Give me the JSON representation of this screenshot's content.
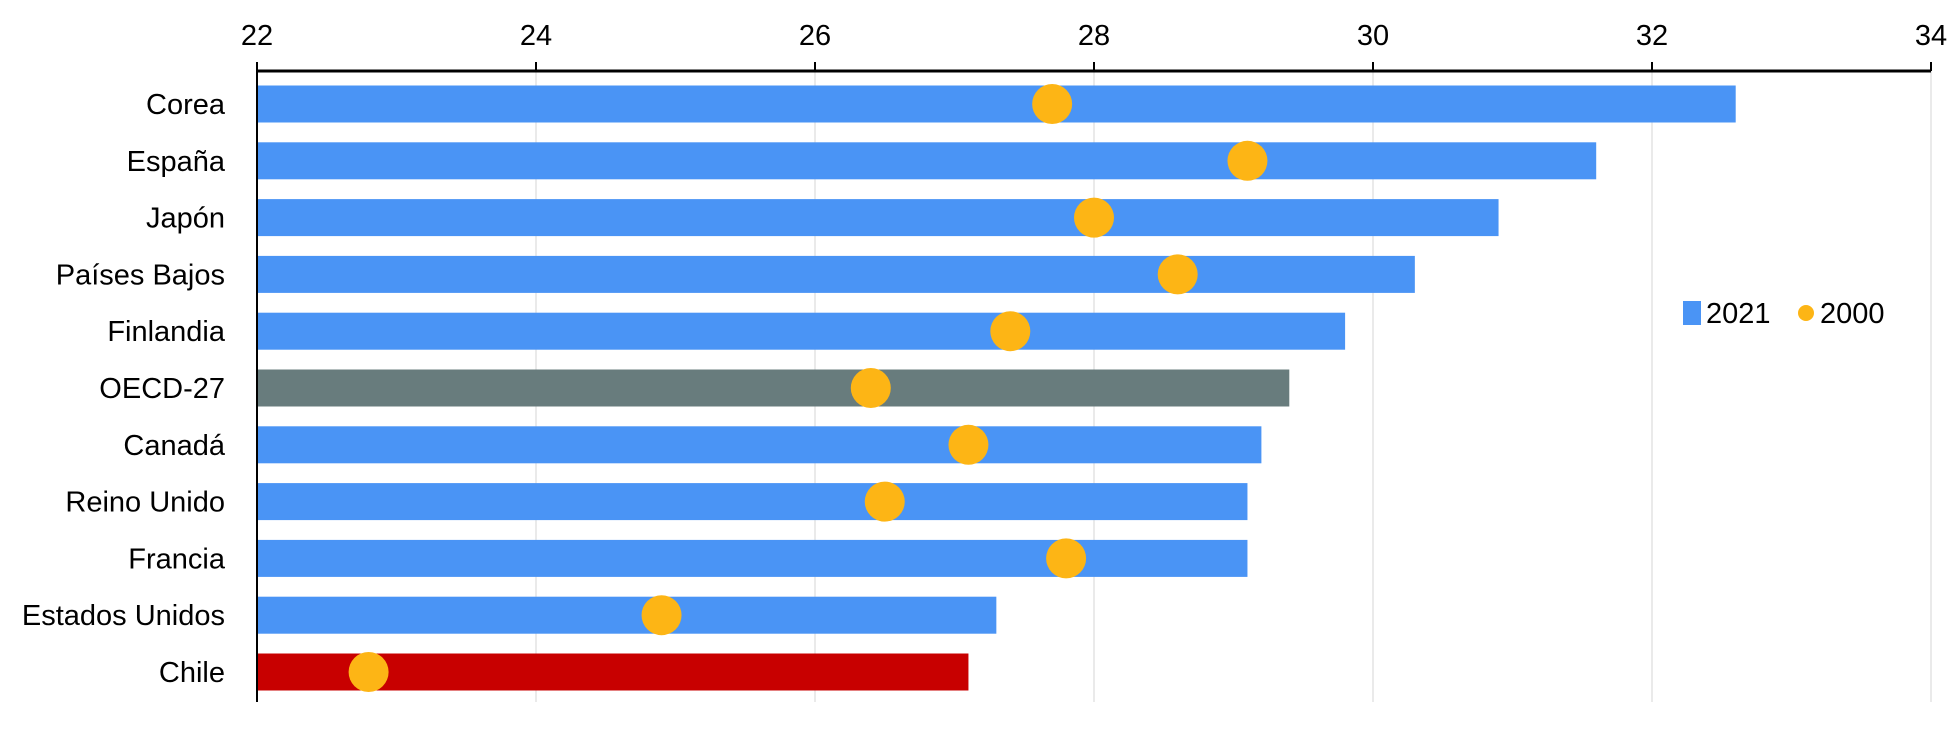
{
  "chart_data": {
    "type": "bar",
    "orientation": "horizontal",
    "title": "",
    "xlabel": "",
    "ylabel": "",
    "xlim": [
      22,
      34
    ],
    "x_ticks": [
      22,
      24,
      26,
      28,
      30,
      32,
      34
    ],
    "x_axis_position": "top",
    "grid": "vertical light gray",
    "legend_position": "right",
    "categories": [
      "Corea",
      "España",
      "Japón",
      "Países Bajos",
      "Finlandia",
      "OECD-27",
      "Canadá",
      "Reino Unido",
      "Francia",
      "Estados Unidos",
      "Chile"
    ],
    "series": [
      {
        "name": "2021",
        "mark": "bar",
        "color": "#4a94f5",
        "values": [
          32.6,
          31.6,
          30.9,
          30.3,
          29.8,
          29.4,
          29.2,
          29.1,
          29.1,
          27.3,
          27.1
        ]
      },
      {
        "name": "2000",
        "mark": "dot",
        "color": "#fdb515",
        "values": [
          27.7,
          29.1,
          28.0,
          28.6,
          27.4,
          26.4,
          27.1,
          26.5,
          27.8,
          24.9,
          22.8
        ]
      }
    ],
    "highlight_colors": {
      "OECD-27": "#687c7d",
      "Chile": "#c80000"
    }
  }
}
